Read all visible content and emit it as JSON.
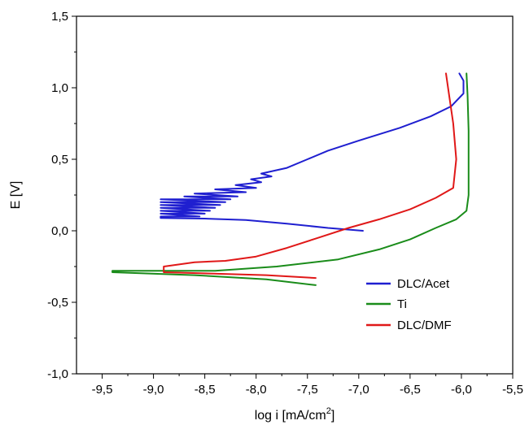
{
  "chart_data": {
    "type": "line",
    "title": "",
    "xlabel": "log i [mA/cm",
    "xlabel_sup": "2",
    "xlabel_end": "]",
    "ylabel": "E [V]",
    "xlim": [
      -9.75,
      -5.5
    ],
    "ylim": [
      -1.0,
      1.5
    ],
    "x_ticks": [
      -9.5,
      -9.0,
      -8.5,
      -8.0,
      -7.5,
      -7.0,
      -6.5,
      -6.0,
      -5.5
    ],
    "x_tick_labels": [
      "-9,5",
      "-9,0",
      "-8,5",
      "-8,0",
      "-7,5",
      "-7,0",
      "-6,5",
      "-6,0",
      "-5,5"
    ],
    "y_ticks": [
      -1.0,
      -0.5,
      0.0,
      0.5,
      1.0,
      1.5
    ],
    "y_tick_labels": [
      "-1,0",
      "-0,5",
      "0,0",
      "0,5",
      "1,0",
      "1,5"
    ],
    "grid": false,
    "legend_position": "lower-right",
    "series": [
      {
        "name": "DLC/Acet",
        "color": "#1f1fd0",
        "points": [
          [
            -6.96,
            0.0
          ],
          [
            -7.3,
            0.02
          ],
          [
            -7.7,
            0.05
          ],
          [
            -8.1,
            0.075
          ],
          [
            -8.5,
            0.085
          ],
          [
            -8.93,
            0.09
          ],
          [
            -8.93,
            0.1
          ],
          [
            -8.55,
            0.1
          ],
          [
            -8.93,
            0.12
          ],
          [
            -8.5,
            0.12
          ],
          [
            -8.93,
            0.14
          ],
          [
            -8.45,
            0.14
          ],
          [
            -8.93,
            0.16
          ],
          [
            -8.4,
            0.16
          ],
          [
            -8.93,
            0.18
          ],
          [
            -8.35,
            0.18
          ],
          [
            -8.93,
            0.2
          ],
          [
            -8.3,
            0.2
          ],
          [
            -8.93,
            0.22
          ],
          [
            -8.25,
            0.22
          ],
          [
            -8.7,
            0.24
          ],
          [
            -8.18,
            0.24
          ],
          [
            -8.6,
            0.26
          ],
          [
            -8.1,
            0.27
          ],
          [
            -8.4,
            0.29
          ],
          [
            -8.0,
            0.3
          ],
          [
            -8.2,
            0.32
          ],
          [
            -7.95,
            0.34
          ],
          [
            -8.05,
            0.36
          ],
          [
            -7.85,
            0.38
          ],
          [
            -7.95,
            0.4
          ],
          [
            -7.7,
            0.44
          ],
          [
            -7.5,
            0.5
          ],
          [
            -7.3,
            0.56
          ],
          [
            -7.0,
            0.63
          ],
          [
            -6.6,
            0.72
          ],
          [
            -6.3,
            0.8
          ],
          [
            -6.1,
            0.87
          ],
          [
            -5.98,
            0.96
          ],
          [
            -5.98,
            1.05
          ],
          [
            -6.02,
            1.1
          ]
        ]
      },
      {
        "name": "Ti",
        "color": "#1a8c1a",
        "points": [
          [
            -7.42,
            -0.38
          ],
          [
            -7.9,
            -0.34
          ],
          [
            -8.6,
            -0.31
          ],
          [
            -9.4,
            -0.29
          ],
          [
            -9.4,
            -0.28
          ],
          [
            -8.4,
            -0.28
          ],
          [
            -7.8,
            -0.25
          ],
          [
            -7.2,
            -0.2
          ],
          [
            -6.8,
            -0.13
          ],
          [
            -6.5,
            -0.06
          ],
          [
            -6.25,
            0.02
          ],
          [
            -6.05,
            0.08
          ],
          [
            -5.95,
            0.14
          ],
          [
            -5.93,
            0.25
          ],
          [
            -5.93,
            0.45
          ],
          [
            -5.93,
            0.7
          ],
          [
            -5.94,
            0.95
          ],
          [
            -5.95,
            1.1
          ]
        ]
      },
      {
        "name": "DLC/DMF",
        "color": "#e01818",
        "points": [
          [
            -7.42,
            -0.33
          ],
          [
            -7.9,
            -0.31
          ],
          [
            -8.9,
            -0.29
          ],
          [
            -8.9,
            -0.25
          ],
          [
            -8.6,
            -0.22
          ],
          [
            -8.3,
            -0.21
          ],
          [
            -8.0,
            -0.18
          ],
          [
            -7.7,
            -0.12
          ],
          [
            -7.4,
            -0.05
          ],
          [
            -7.1,
            0.02
          ],
          [
            -6.8,
            0.08
          ],
          [
            -6.5,
            0.15
          ],
          [
            -6.25,
            0.23
          ],
          [
            -6.08,
            0.3
          ],
          [
            -6.05,
            0.5
          ],
          [
            -6.08,
            0.75
          ],
          [
            -6.12,
            0.95
          ],
          [
            -6.15,
            1.1
          ]
        ]
      }
    ]
  }
}
